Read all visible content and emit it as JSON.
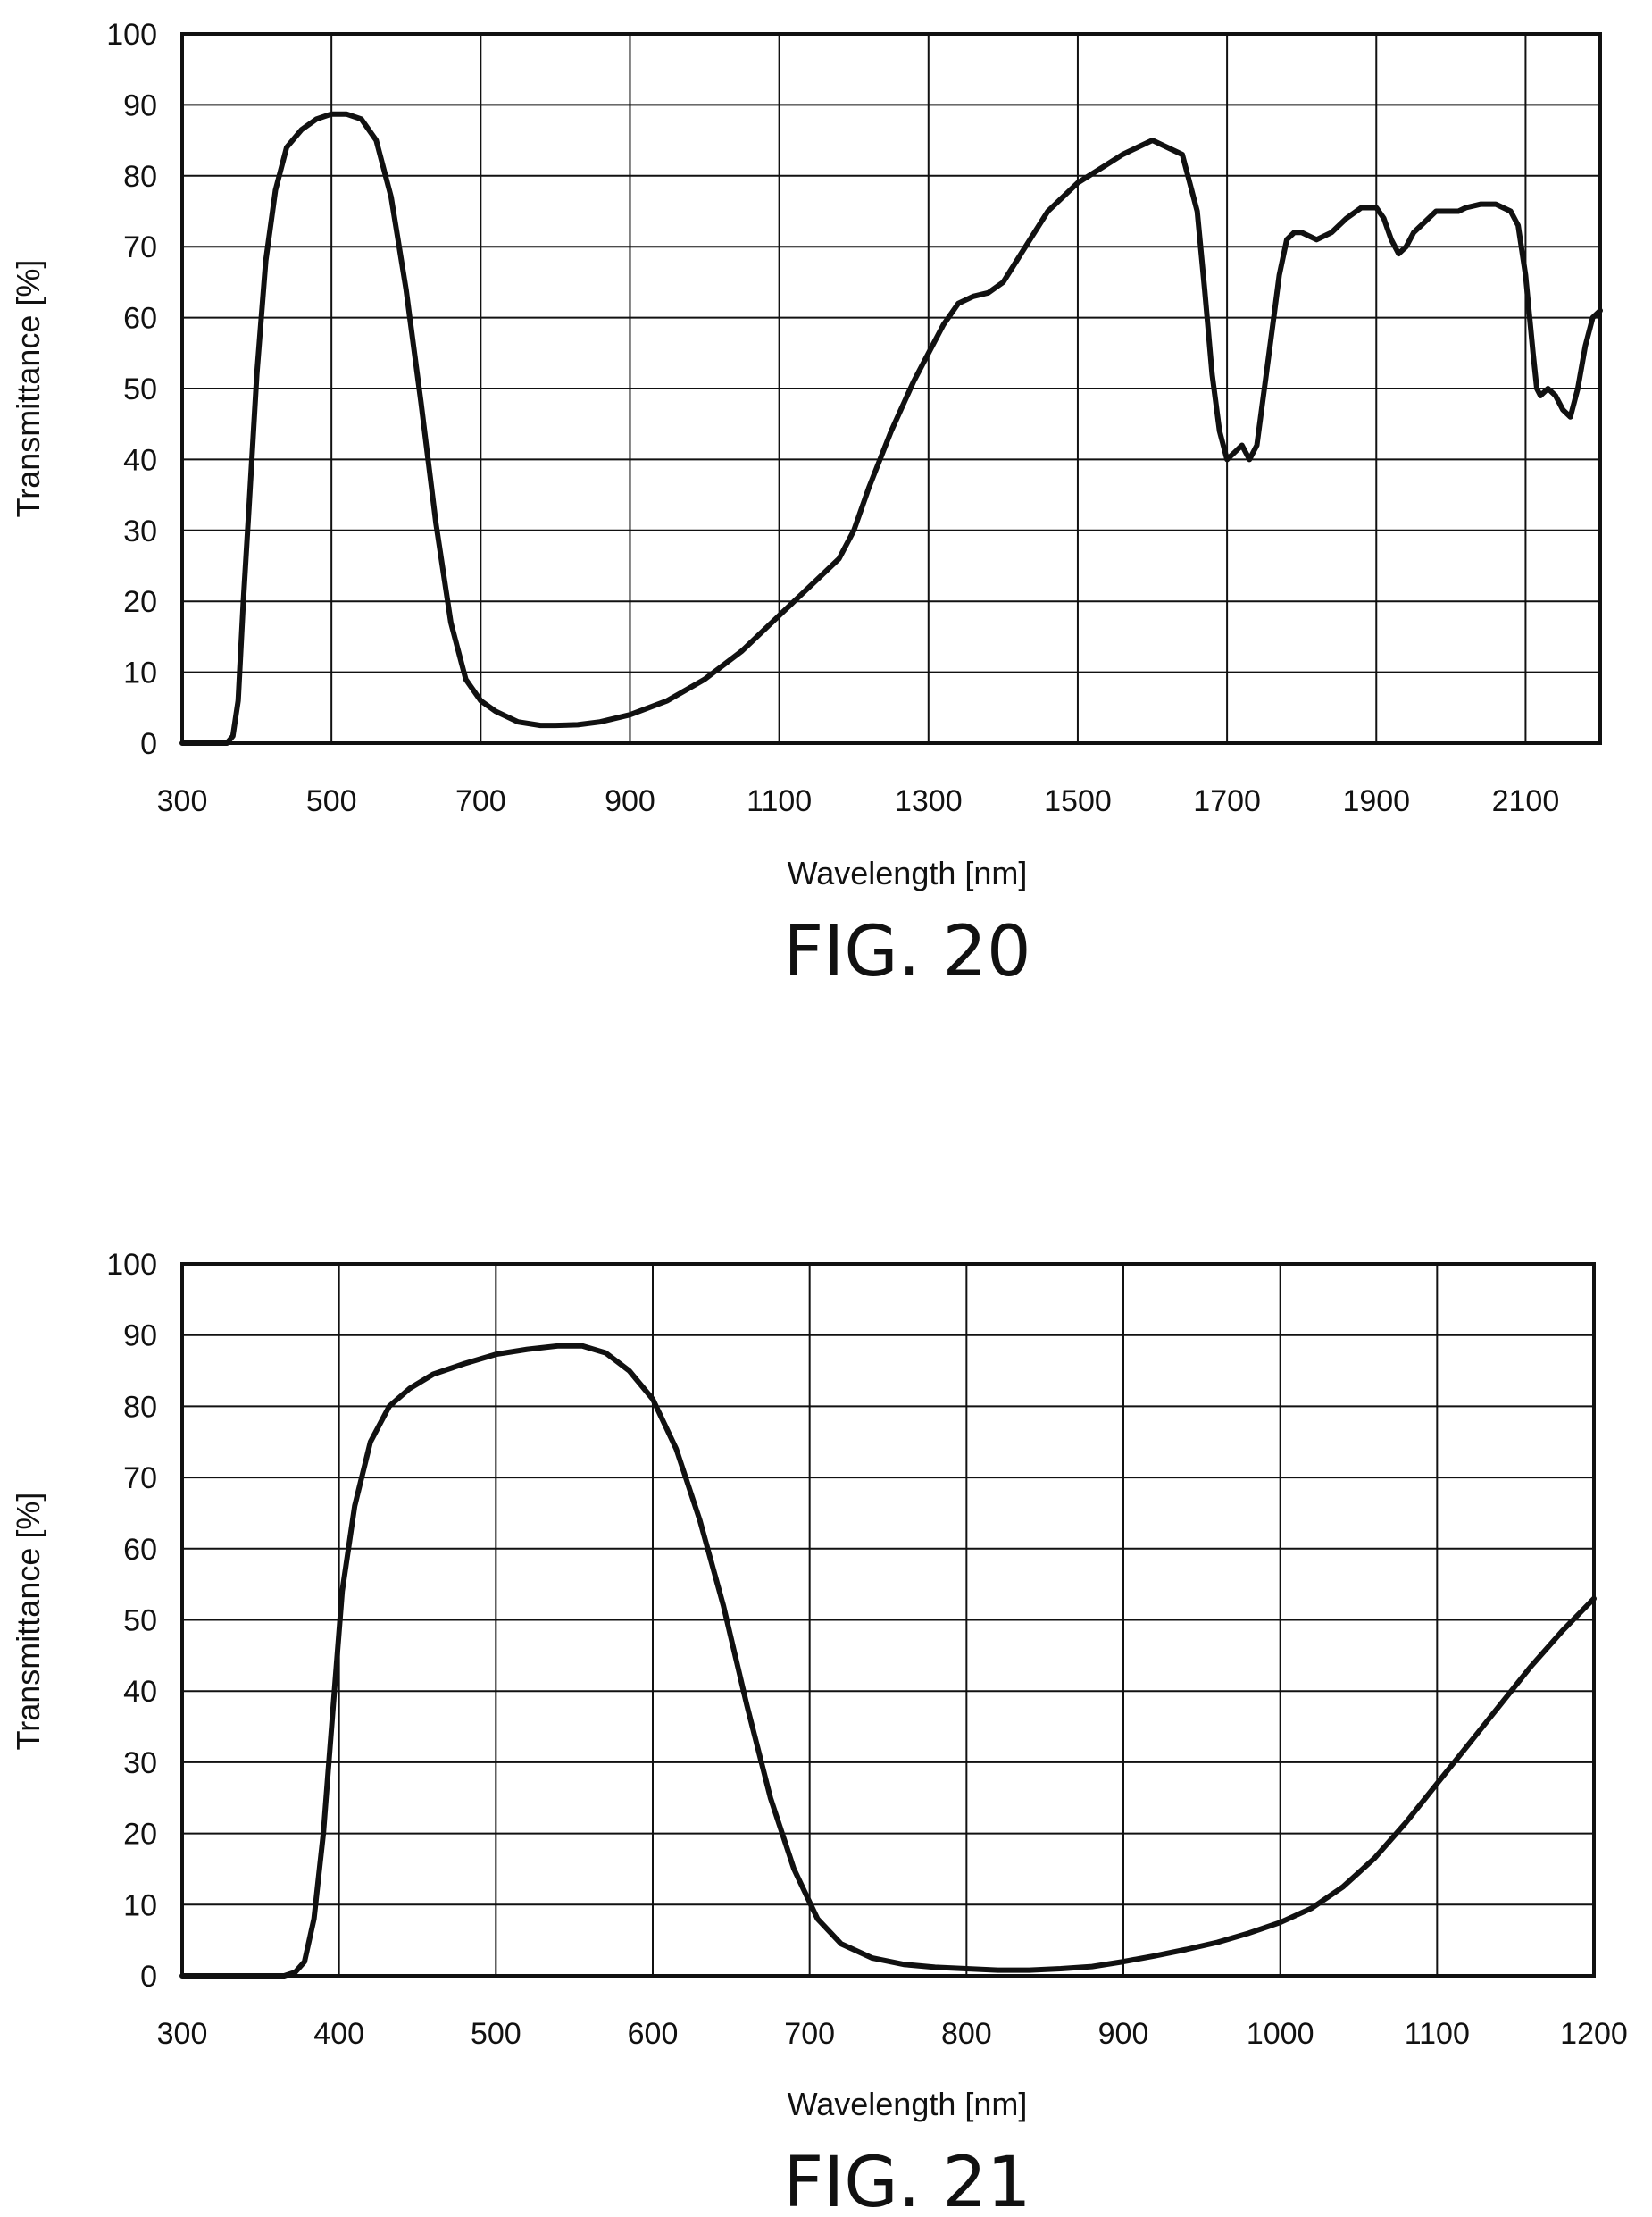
{
  "chart_data": [
    {
      "type": "line",
      "caption": "FIG. 20",
      "xlabel": "Wavelength [nm]",
      "ylabel": "Transmittance [%]",
      "xlim": [
        300,
        2200
      ],
      "ylim": [
        0,
        100
      ],
      "x_ticks": [
        300,
        500,
        700,
        900,
        1100,
        1300,
        1500,
        1700,
        1900,
        2100
      ],
      "x_gridlines": [
        300,
        500,
        700,
        900,
        1100,
        1300,
        1500,
        1700,
        1900,
        2100,
        2200
      ],
      "y_ticks": [
        0,
        10,
        20,
        30,
        40,
        50,
        60,
        70,
        80,
        90,
        100
      ],
      "grid": true,
      "colors": {
        "line": "#111111",
        "grid": "#111111"
      },
      "series": [
        {
          "x": [
            300,
            360,
            368,
            375,
            382,
            390,
            400,
            412,
            425,
            440,
            460,
            480,
            500,
            520,
            540,
            560,
            580,
            600,
            620,
            640,
            660,
            680,
            700,
            720,
            750,
            780,
            800,
            830,
            860,
            900,
            950,
            1000,
            1050,
            1100,
            1150,
            1180,
            1200,
            1220,
            1250,
            1280,
            1300,
            1320,
            1340,
            1360,
            1380,
            1400,
            1430,
            1460,
            1500,
            1530,
            1560,
            1580,
            1600,
            1620,
            1640,
            1660,
            1670,
            1680,
            1690,
            1700,
            1710,
            1720,
            1730,
            1740,
            1750,
            1760,
            1770,
            1780,
            1790,
            1800,
            1820,
            1840,
            1860,
            1880,
            1900,
            1910,
            1920,
            1930,
            1940,
            1950,
            1960,
            1980,
            2000,
            2010,
            2020,
            2040,
            2060,
            2080,
            2090,
            2100,
            2110,
            2115,
            2120,
            2130,
            2140,
            2150,
            2160,
            2170,
            2180,
            2190,
            2200
          ],
          "y": [
            0,
            0,
            1,
            6,
            20,
            34,
            52,
            68,
            78,
            84,
            86.5,
            88,
            88.7,
            88.7,
            88,
            85,
            77,
            64,
            48,
            31,
            17,
            9,
            6,
            4.5,
            3,
            2.5,
            2.5,
            2.6,
            3,
            4,
            6,
            9,
            13,
            18,
            23,
            26,
            30,
            36,
            44,
            51,
            55,
            59,
            62,
            63,
            63.5,
            65,
            70,
            75,
            79,
            81,
            83,
            84,
            85,
            84,
            83,
            75,
            64,
            52,
            44,
            40,
            41,
            42,
            40,
            42,
            50,
            58,
            66,
            71,
            72,
            72,
            71,
            72,
            74,
            75.5,
            75.5,
            74,
            71,
            69,
            70,
            72,
            73,
            75,
            75,
            75,
            75.5,
            76,
            76,
            75,
            73,
            66,
            55,
            50,
            49,
            50,
            49,
            47,
            46,
            50,
            56,
            60,
            61
          ]
        }
      ]
    },
    {
      "type": "line",
      "caption": "FIG. 21",
      "xlabel": "Wavelength [nm]",
      "ylabel": "Transmittance [%]",
      "xlim": [
        300,
        1200
      ],
      "ylim": [
        0,
        100
      ],
      "x_ticks": [
        300,
        400,
        500,
        600,
        700,
        800,
        900,
        1000,
        1100,
        1200
      ],
      "x_gridlines": [
        300,
        400,
        500,
        600,
        700,
        800,
        900,
        1000,
        1100,
        1200
      ],
      "y_ticks": [
        0,
        10,
        20,
        30,
        40,
        50,
        60,
        70,
        80,
        90,
        100
      ],
      "grid": true,
      "colors": {
        "line": "#111111",
        "grid": "#111111"
      },
      "series": [
        {
          "x": [
            300,
            365,
            372,
            378,
            384,
            390,
            396,
            402,
            410,
            420,
            432,
            445,
            460,
            480,
            500,
            520,
            540,
            555,
            570,
            585,
            600,
            615,
            630,
            645,
            660,
            675,
            690,
            705,
            720,
            740,
            760,
            780,
            800,
            820,
            840,
            860,
            880,
            900,
            920,
            940,
            960,
            980,
            1000,
            1020,
            1040,
            1060,
            1080,
            1100,
            1120,
            1140,
            1160,
            1180,
            1200
          ],
          "y": [
            0,
            0,
            0.5,
            2,
            8,
            20,
            37,
            54,
            66,
            75,
            80,
            82.5,
            84.5,
            86,
            87.3,
            88,
            88.5,
            88.5,
            87.5,
            85,
            81,
            74,
            64,
            52,
            38,
            25,
            15,
            8,
            4.5,
            2.5,
            1.6,
            1.2,
            1,
            0.8,
            0.8,
            1,
            1.3,
            2,
            2.8,
            3.7,
            4.7,
            6,
            7.5,
            9.5,
            12.5,
            16.5,
            21.5,
            27,
            32.5,
            38,
            43.5,
            48.5,
            53
          ]
        }
      ]
    }
  ]
}
